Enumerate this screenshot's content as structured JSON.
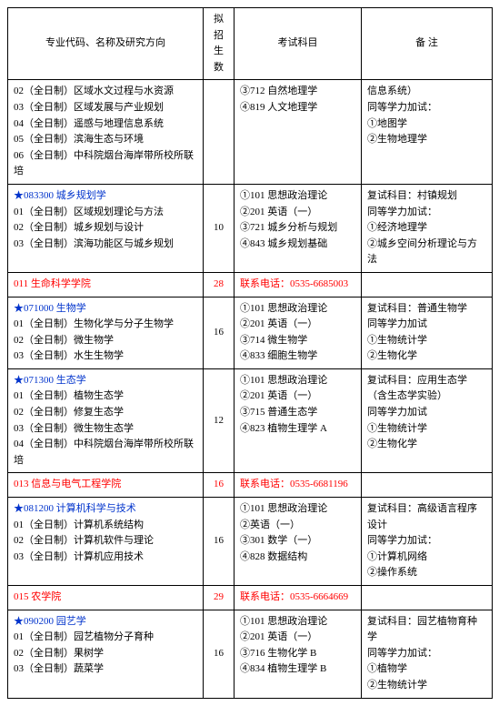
{
  "columns": {
    "c1": "专业代码、名称及研究方向",
    "c2": "拟招\n生数",
    "c3": "考试科目",
    "c4": "备    注"
  },
  "widths": {
    "c1": 215,
    "c2": 34,
    "c3": 140,
    "c4": 144
  },
  "rows": [
    {
      "c1": [
        "02（全日制）区域水文过程与水资源",
        "03（全日制）区域发展与产业规划",
        "04（全日制）遥感与地理信息系统",
        "05（全日制）滨海生态与环境",
        "06（全日制）中科院烟台海岸带所校所联培"
      ],
      "c2": "",
      "c3": [
        "③712 自然地理学",
        "④819 人文地理学"
      ],
      "c4": [
        "信息系统）",
        "同等学力加试：",
        "①地图学",
        "②生物地理学"
      ]
    },
    {
      "c1": [
        {
          "t": "★083300 城乡规划学",
          "cls": "blue-star"
        },
        "01（全日制）区域规划理论与方法",
        "02（全日制）城乡规划与设计",
        "03（全日制）滨海功能区与城乡规划"
      ],
      "c2": "10",
      "c3": [
        "①101 思想政治理论",
        "②201 英语（一）",
        "③721 城乡分析与规划",
        "④843 城乡规划基础"
      ],
      "c4": [
        "复试科目：村镇规划",
        "同等学力加试：",
        "①经济地理学",
        "②城乡空间分析理论与方法"
      ]
    },
    {
      "c1": [
        {
          "t": "011 生命科学学院",
          "cls": "red"
        }
      ],
      "c2": {
        "t": "28",
        "cls": "red"
      },
      "c3": [
        {
          "t": "联系电话：0535-6685003",
          "cls": "red"
        }
      ],
      "c4": [
        ""
      ]
    },
    {
      "c1": [
        {
          "t": "★071000 生物学",
          "cls": "blue-star"
        },
        "01（全日制）生物化学与分子生物学",
        "02（全日制）微生物学",
        "03（全日制）水生生物学"
      ],
      "c2": "16",
      "c3": [
        "①101 思想政治理论",
        "②201 英语（一）",
        "③714 微生物学",
        "④833 细胞生物学"
      ],
      "c4": [
        "复试科目：普通生物学",
        "同等学力加试",
        "①生物统计学",
        "②生物化学"
      ]
    },
    {
      "c1": [
        {
          "t": "★071300 生态学",
          "cls": "blue-star"
        },
        "01（全日制）植物生态学",
        "02（全日制）修复生态学",
        "03（全日制）微生物生态学",
        "04（全日制）中科院烟台海岸带所校所联培"
      ],
      "c2": "12",
      "c3": [
        "①101 思想政治理论",
        "②201 英语（一）",
        "③715 普通生态学",
        "④823 植物生理学 A"
      ],
      "c4": [
        "复试科目：应用生态学（含生态学实验）",
        "同等学力加试",
        "①生物统计学",
        "②生物化学"
      ]
    },
    {
      "c1": [
        {
          "t": "013 信息与电气工程学院",
          "cls": "red"
        }
      ],
      "c2": {
        "t": "16",
        "cls": "red"
      },
      "c3": [
        {
          "t": "联系电话：0535-6681196",
          "cls": "red"
        }
      ],
      "c4": [
        ""
      ]
    },
    {
      "c1": [
        {
          "t": "★081200 计算机科学与技术",
          "cls": "blue-star"
        },
        "01（全日制）计算机系统结构",
        "02（全日制）计算机软件与理论",
        "03（全日制）计算机应用技术"
      ],
      "c2": "16",
      "c3": [
        "①101 思想政治理论",
        "②英语（一）",
        "③301 数学（一）",
        "④828 数据结构"
      ],
      "c4": [
        "复试科目：高级语言程序设计",
        "同等学力加试：",
        "①计算机网络",
        "②操作系统"
      ]
    },
    {
      "c1": [
        {
          "t": "015 农学院",
          "cls": "red"
        }
      ],
      "c2": {
        "t": "29",
        "cls": "red"
      },
      "c3": [
        {
          "t": "联系电话：0535-6664669",
          "cls": "red"
        }
      ],
      "c4": [
        ""
      ]
    },
    {
      "c1": [
        {
          "t": "★090200 园艺学",
          "cls": "blue-star"
        },
        "01（全日制）园艺植物分子育种",
        "02（全日制）果树学",
        "03（全日制）蔬菜学"
      ],
      "c2": "16",
      "c3": [
        "①101 思想政治理论",
        "②201 英语（一）",
        "③716 生物化学 B",
        "④834 植物生理学 B"
      ],
      "c4": [
        "复试科目：园艺植物育种学",
        "同等学力加试：",
        "①植物学",
        "②生物统计学"
      ]
    }
  ]
}
